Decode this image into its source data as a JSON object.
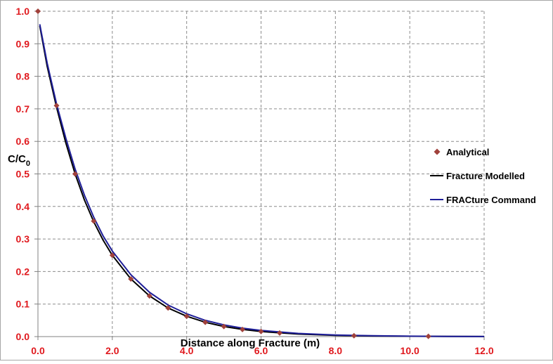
{
  "chart_data": {
    "type": "line",
    "xlabel": "Distance along Fracture (m)",
    "ylabel_main": "C/C",
    "ylabel_sub": "0",
    "xlim": [
      0,
      12
    ],
    "ylim": [
      0,
      1
    ],
    "x_ticks": [
      "0.0",
      "2.0",
      "4.0",
      "6.0",
      "8.0",
      "10.0",
      "12.0"
    ],
    "y_ticks": [
      "0.0",
      "0.1",
      "0.2",
      "0.3",
      "0.4",
      "0.5",
      "0.6",
      "0.7",
      "0.8",
      "0.9",
      "1.0"
    ],
    "grid": true,
    "legend_position": "right",
    "series": [
      {
        "name": "Analytical",
        "style": "markers",
        "color": "#a0413b",
        "x": [
          0.0,
          0.5,
          1.0,
          1.5,
          2.0,
          2.5,
          3.0,
          3.5,
          4.0,
          4.5,
          5.0,
          5.5,
          6.0,
          6.5,
          8.5,
          10.5
        ],
        "y": [
          1.0,
          0.71,
          0.5,
          0.355,
          0.25,
          0.177,
          0.125,
          0.088,
          0.0625,
          0.044,
          0.031,
          0.022,
          0.0156,
          0.011,
          0.0028,
          0.0007
        ]
      },
      {
        "name": "Fracture Modelled",
        "style": "line",
        "color": "#000000",
        "x": [
          0.05,
          0.25,
          0.5,
          0.75,
          1.0,
          1.25,
          1.5,
          1.75,
          2.0,
          2.5,
          3.0,
          3.5,
          4.0,
          4.5,
          5.0,
          5.5,
          6.0,
          7.0,
          8.0,
          9.0,
          10.0,
          11.0,
          12.0
        ],
        "y": [
          0.955,
          0.83,
          0.705,
          0.595,
          0.5,
          0.42,
          0.353,
          0.297,
          0.25,
          0.177,
          0.125,
          0.088,
          0.0625,
          0.044,
          0.031,
          0.022,
          0.0156,
          0.0078,
          0.0039,
          0.002,
          0.001,
          0.0005,
          0.0002
        ]
      },
      {
        "name": "FRACture Command",
        "style": "line",
        "color": "#1f1f99",
        "x": [
          0.05,
          0.25,
          0.5,
          0.75,
          1.0,
          1.25,
          1.5,
          1.75,
          2.0,
          2.5,
          3.0,
          3.5,
          4.0,
          4.5,
          5.0,
          5.5,
          6.0,
          7.0,
          8.0,
          9.0,
          10.0,
          11.0,
          12.0
        ],
        "y": [
          0.96,
          0.84,
          0.715,
          0.61,
          0.515,
          0.435,
          0.367,
          0.31,
          0.263,
          0.19,
          0.136,
          0.097,
          0.07,
          0.05,
          0.036,
          0.026,
          0.019,
          0.0097,
          0.005,
          0.0026,
          0.0013,
          0.0007,
          0.0003
        ]
      }
    ]
  }
}
